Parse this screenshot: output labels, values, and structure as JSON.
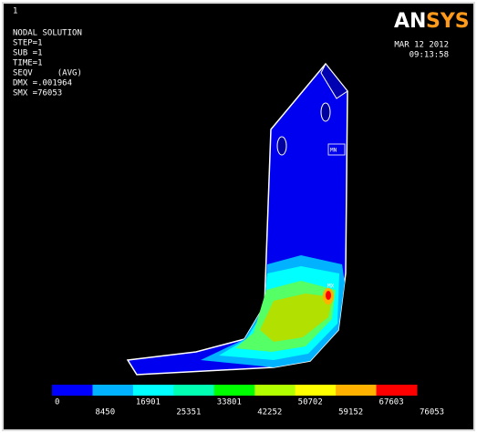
{
  "window_number": "1",
  "header": {
    "lines": [
      "NODAL SOLUTION",
      "STEP=1",
      "SUB =1",
      "TIME=1",
      "SEQV     (AVG)",
      "DMX =.001964",
      "SMX =76053"
    ]
  },
  "logo": {
    "first": "AN",
    "second": "SYS"
  },
  "date": "MAR 12 2012",
  "time": "09:13:58",
  "markers": {
    "min": "MN",
    "max": "MX"
  },
  "legend": {
    "colors": [
      "#0000ff",
      "#00b2ff",
      "#00ffff",
      "#00ffb2",
      "#00ff00",
      "#b2ff00",
      "#ffff00",
      "#ffb200",
      "#ff0000"
    ],
    "labels": [
      "0",
      "8450",
      "16901",
      "25351",
      "33801",
      "42252",
      "50702",
      "59152",
      "67603",
      "76053"
    ]
  }
}
